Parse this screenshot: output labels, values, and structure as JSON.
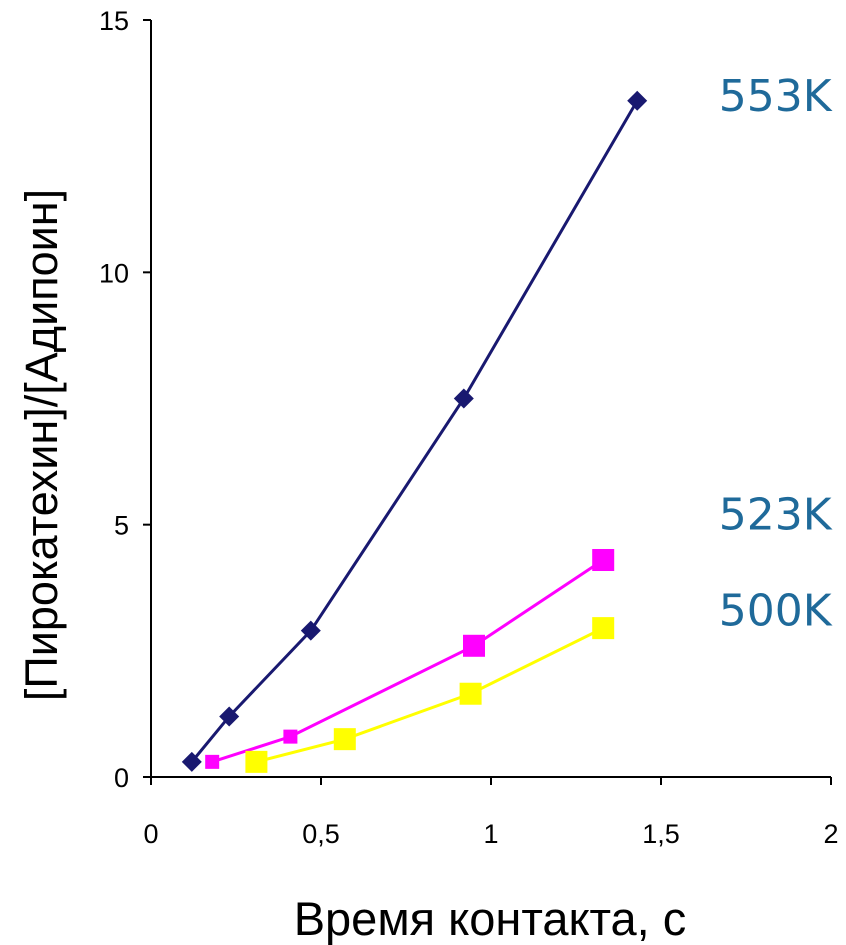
{
  "chart_data": {
    "type": "line",
    "xlabel": "Время контакта, с",
    "ylabel": "[Пирокатехин]/[Адипоин]",
    "xlim": [
      0,
      2
    ],
    "ylim": [
      0,
      15
    ],
    "xticks": [
      0,
      0.5,
      1,
      1.5,
      2
    ],
    "xtick_labels": [
      "0",
      "0,5",
      "1",
      "1,5",
      "2"
    ],
    "yticks": [
      0,
      5,
      10,
      15
    ],
    "ytick_labels": [
      "0",
      "5",
      "10",
      "15"
    ],
    "grid": false,
    "legend": "none",
    "series": [
      {
        "name": "553K",
        "color": "#191970",
        "marker": "diamond",
        "x": [
          0.12,
          0.23,
          0.47,
          0.92,
          1.43
        ],
        "y": [
          0.3,
          1.2,
          2.9,
          7.5,
          13.4
        ]
      },
      {
        "name": "523K",
        "color": "#ff00ff",
        "marker": "square",
        "x": [
          0.18,
          0.41,
          0.95,
          1.33
        ],
        "y": [
          0.3,
          0.8,
          2.6,
          4.3
        ]
      },
      {
        "name": "500K",
        "color": "#ffff00",
        "marker": "square",
        "x": [
          0.31,
          0.57,
          0.94,
          1.33
        ],
        "y": [
          0.3,
          0.75,
          1.65,
          2.95
        ]
      }
    ],
    "annotations": [
      {
        "text": "553K",
        "color": "#1f6a9a",
        "x": 1.67,
        "y": 13.2
      },
      {
        "text": "523K",
        "color": "#1f6a9a",
        "x": 1.67,
        "y": 4.9
      },
      {
        "text": "500K",
        "color": "#1f6a9a",
        "x": 1.67,
        "y": 3.0
      }
    ]
  }
}
